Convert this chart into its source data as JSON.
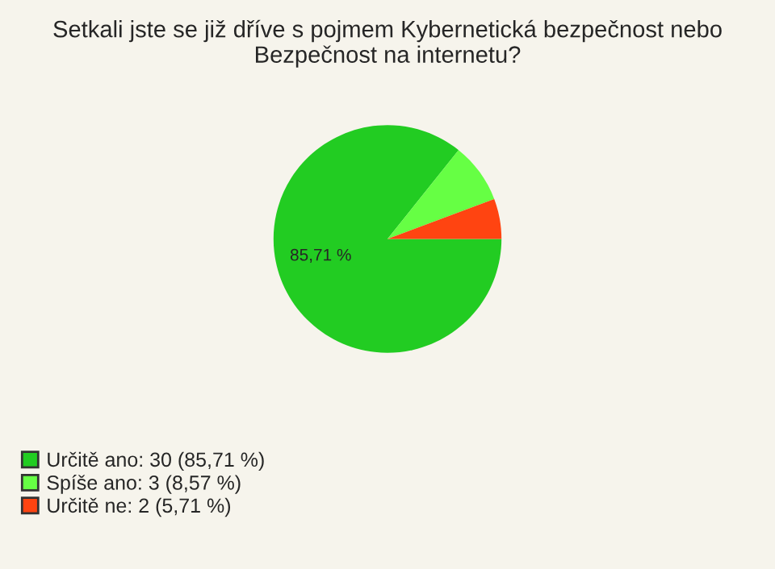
{
  "chart_data": {
    "type": "pie",
    "title": "Setkali jste se již dříve s pojmem Kybernetická bezpečnost nebo Bezpečnost na internetu?",
    "categories": [
      "Určitě ano: 30 (85,71 %)",
      "Spíše ano: 3 (8,57 %)",
      "Určitě ne: 2 (5,71 %)"
    ],
    "values": [
      85.71,
      8.57,
      5.71
    ],
    "value_labels": [
      "85,71 %",
      null,
      null
    ],
    "colors": [
      "#22cc22",
      "#66ff44",
      "#ff4411"
    ],
    "legend": "bottom left"
  }
}
